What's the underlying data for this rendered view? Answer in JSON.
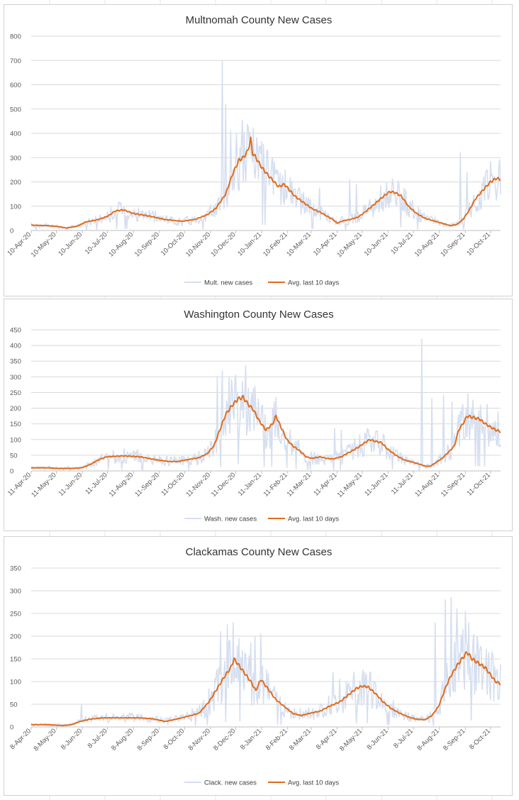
{
  "colors": {
    "raw": "#d6dff0",
    "avg": "#e06c1b",
    "grid": "#d9d9d9",
    "axis": "#bfbfbf",
    "text": "#595959",
    "sheet_grid": "#e4e4e4"
  },
  "chart_data": [
    {
      "id": "mult",
      "type": "line",
      "title": "Multnomah County New Cases",
      "ylim": [
        0,
        800
      ],
      "yticks": [
        0,
        100,
        200,
        300,
        400,
        500,
        600,
        700,
        800
      ],
      "xlim": [
        0,
        560
      ],
      "xtick_days": [
        0,
        30,
        61,
        91,
        122,
        153,
        183,
        214,
        244,
        275,
        306,
        334,
        365,
        395,
        426,
        456,
        487,
        518,
        548
      ],
      "categories": [
        "10-Apr-20",
        "10-May-20",
        "10-Jun-20",
        "10-Jul-20",
        "10-Aug-20",
        "10-Sep-20",
        "10-Oct-20",
        "10-Nov-20",
        "10-Dec-20",
        "10-Jan-21",
        "10-Feb-21",
        "10-Mar-21",
        "10-Apr-21",
        "10-May-21",
        "10-Jun-21",
        "10-Jul-21",
        "10-Aug-21",
        "10-Sep-21",
        "10-Oct-21"
      ],
      "series": [
        {
          "name": "Mult. new cases",
          "noise": 0.45,
          "spikes": [
            [
              228,
              700
            ],
            [
              232,
              520
            ],
            [
              238,
              410
            ],
            [
              245,
              400
            ],
            [
              252,
              455
            ],
            [
              262,
              310
            ],
            [
              268,
              260
            ],
            [
              344,
              175
            ],
            [
              380,
              210
            ],
            [
              388,
              190
            ],
            [
              512,
              320
            ],
            [
              520,
              240
            ],
            [
              540,
              220
            ],
            [
              552,
              215
            ]
          ]
        },
        {
          "name": "Avg. last 10 days",
          "points": [
            [
              0,
              22
            ],
            [
              20,
              20
            ],
            [
              35,
              15
            ],
            [
              42,
              10
            ],
            [
              55,
              18
            ],
            [
              65,
              35
            ],
            [
              80,
              45
            ],
            [
              92,
              60
            ],
            [
              100,
              80
            ],
            [
              110,
              85
            ],
            [
              122,
              70
            ],
            [
              140,
              60
            ],
            [
              160,
              45
            ],
            [
              180,
              38
            ],
            [
              195,
              45
            ],
            [
              210,
              65
            ],
            [
              220,
              90
            ],
            [
              232,
              150
            ],
            [
              240,
              230
            ],
            [
              248,
              290
            ],
            [
              253,
              300
            ],
            [
              258,
              325
            ],
            [
              262,
              375
            ],
            [
              264,
              320
            ],
            [
              268,
              300
            ],
            [
              275,
              260
            ],
            [
              282,
              230
            ],
            [
              290,
              200
            ],
            [
              295,
              180
            ],
            [
              302,
              190
            ],
            [
              306,
              175
            ],
            [
              315,
              140
            ],
            [
              325,
              115
            ],
            [
              335,
              90
            ],
            [
              345,
              75
            ],
            [
              355,
              55
            ],
            [
              360,
              45
            ],
            [
              365,
              30
            ],
            [
              372,
              40
            ],
            [
              380,
              45
            ],
            [
              390,
              55
            ],
            [
              398,
              75
            ],
            [
              410,
              110
            ],
            [
              420,
              140
            ],
            [
              428,
              160
            ],
            [
              435,
              155
            ],
            [
              442,
              140
            ],
            [
              450,
              100
            ],
            [
              460,
              70
            ],
            [
              470,
              50
            ],
            [
              480,
              40
            ],
            [
              490,
              30
            ],
            [
              500,
              20
            ],
            [
              508,
              25
            ],
            [
              515,
              45
            ],
            [
              522,
              80
            ],
            [
              530,
              130
            ],
            [
              540,
              170
            ],
            [
              548,
              200
            ],
            [
              555,
              215
            ],
            [
              560,
              210
            ]
          ]
        }
      ]
    },
    {
      "id": "wash",
      "type": "line",
      "title": "Washington County New Cases",
      "ylim": [
        0,
        450
      ],
      "yticks": [
        0,
        50,
        100,
        150,
        200,
        250,
        300,
        350,
        400,
        450
      ],
      "xlim": [
        0,
        560
      ],
      "xtick_days": [
        0,
        30,
        61,
        91,
        122,
        153,
        183,
        214,
        244,
        275,
        306,
        334,
        365,
        395,
        426,
        456,
        487,
        518,
        548
      ],
      "categories": [
        "11-Apr-20",
        "11-May-20",
        "11-Jun-20",
        "11-Jul-20",
        "11-Aug-20",
        "11-Sep-20",
        "11-Oct-20",
        "11-Nov-20",
        "11-Dec-20",
        "11-Jan-21",
        "11-Feb-21",
        "11-Mar-21",
        "11-Apr-21",
        "11-May-21",
        "11-Jun-21",
        "11-Jul-21",
        "11-Aug-21",
        "11-Sep-21",
        "11-Oct-21"
      ],
      "series": [
        {
          "name": "Wash. new cases",
          "noise": 0.5,
          "spikes": [
            [
              222,
              300
            ],
            [
              228,
              320
            ],
            [
              236,
              300
            ],
            [
              244,
              305
            ],
            [
              252,
              285
            ],
            [
              262,
              215
            ],
            [
              268,
              200
            ],
            [
              362,
              135
            ],
            [
              370,
              130
            ],
            [
              466,
              420
            ],
            [
              478,
              230
            ],
            [
              492,
              240
            ],
            [
              502,
              220
            ],
            [
              528,
              150
            ]
          ]
        },
        {
          "name": "Avg. last 10 days",
          "points": [
            [
              0,
              10
            ],
            [
              20,
              10
            ],
            [
              30,
              8
            ],
            [
              50,
              8
            ],
            [
              60,
              10
            ],
            [
              70,
              20
            ],
            [
              80,
              35
            ],
            [
              90,
              45
            ],
            [
              110,
              48
            ],
            [
              130,
              45
            ],
            [
              150,
              35
            ],
            [
              165,
              30
            ],
            [
              175,
              30
            ],
            [
              185,
              35
            ],
            [
              200,
              42
            ],
            [
              210,
              55
            ],
            [
              218,
              80
            ],
            [
              225,
              130
            ],
            [
              232,
              180
            ],
            [
              240,
              210
            ],
            [
              247,
              230
            ],
            [
              253,
              235
            ],
            [
              258,
              215
            ],
            [
              265,
              195
            ],
            [
              272,
              160
            ],
            [
              280,
              130
            ],
            [
              288,
              150
            ],
            [
              292,
              175
            ],
            [
              298,
              140
            ],
            [
              305,
              100
            ],
            [
              312,
              80
            ],
            [
              320,
              65
            ],
            [
              328,
              45
            ],
            [
              335,
              40
            ],
            [
              345,
              45
            ],
            [
              352,
              40
            ],
            [
              360,
              38
            ],
            [
              370,
              45
            ],
            [
              380,
              60
            ],
            [
              390,
              75
            ],
            [
              398,
              90
            ],
            [
              404,
              100
            ],
            [
              410,
              95
            ],
            [
              418,
              90
            ],
            [
              425,
              70
            ],
            [
              435,
              50
            ],
            [
              445,
              35
            ],
            [
              455,
              28
            ],
            [
              465,
              20
            ],
            [
              470,
              15
            ],
            [
              476,
              15
            ],
            [
              482,
              25
            ],
            [
              490,
              40
            ],
            [
              498,
              60
            ],
            [
              505,
              80
            ],
            [
              510,
              130
            ],
            [
              515,
              150
            ],
            [
              520,
              175
            ],
            [
              528,
              170
            ],
            [
              535,
              165
            ],
            [
              542,
              150
            ],
            [
              548,
              140
            ],
            [
              555,
              130
            ],
            [
              560,
              125
            ]
          ]
        }
      ]
    },
    {
      "id": "clack",
      "type": "line",
      "title": "Clackamas County New Cases",
      "ylim": [
        0,
        350
      ],
      "yticks": [
        0,
        50,
        100,
        150,
        200,
        250,
        300,
        350
      ],
      "xlim": [
        0,
        560
      ],
      "xtick_days": [
        0,
        30,
        61,
        91,
        122,
        153,
        183,
        214,
        244,
        275,
        306,
        334,
        365,
        395,
        426,
        456,
        487,
        518,
        548
      ],
      "categories": [
        "8-Apr-20",
        "8-May-20",
        "8-Jun-20",
        "8-Jul-20",
        "8-Aug-20",
        "8-Sep-20",
        "8-Oct-20",
        "8-Nov-20",
        "8-Dec-20",
        "8-Jan-21",
        "8-Feb-21",
        "8-Mar-21",
        "8-Apr-21",
        "8-May-21",
        "8-Jun-21",
        "8-Jul-21",
        "8-Aug-21",
        "8-Sep-21",
        "8-Oct-21"
      ],
      "series": [
        {
          "name": "Clack. new cases",
          "noise": 0.5,
          "spikes": [
            [
              60,
              50
            ],
            [
              226,
              210
            ],
            [
              234,
              225
            ],
            [
              241,
              230
            ],
            [
              248,
              195
            ],
            [
              262,
              185
            ],
            [
              267,
              200
            ],
            [
              274,
              205
            ],
            [
              360,
              120
            ],
            [
              368,
              105
            ],
            [
              398,
              120
            ],
            [
              404,
              120
            ],
            [
              482,
              230
            ],
            [
              494,
              280
            ],
            [
              501,
              285
            ],
            [
              508,
              260
            ],
            [
              518,
              255
            ],
            [
              532,
              200
            ]
          ]
        },
        {
          "name": "Avg. last 10 days",
          "points": [
            [
              0,
              5
            ],
            [
              20,
              5
            ],
            [
              38,
              3
            ],
            [
              48,
              5
            ],
            [
              58,
              12
            ],
            [
              70,
              17
            ],
            [
              85,
              20
            ],
            [
              110,
              20
            ],
            [
              130,
              20
            ],
            [
              145,
              18
            ],
            [
              160,
              12
            ],
            [
              175,
              18
            ],
            [
              190,
              25
            ],
            [
              200,
              30
            ],
            [
              212,
              55
            ],
            [
              222,
              85
            ],
            [
              232,
              115
            ],
            [
              238,
              130
            ],
            [
              242,
              150
            ],
            [
              248,
              135
            ],
            [
              256,
              115
            ],
            [
              262,
              100
            ],
            [
              268,
              80
            ],
            [
              274,
              105
            ],
            [
              282,
              85
            ],
            [
              292,
              60
            ],
            [
              302,
              45
            ],
            [
              312,
              30
            ],
            [
              322,
              25
            ],
            [
              332,
              30
            ],
            [
              345,
              35
            ],
            [
              355,
              45
            ],
            [
              368,
              55
            ],
            [
              378,
              70
            ],
            [
              388,
              85
            ],
            [
              395,
              90
            ],
            [
              402,
              88
            ],
            [
              410,
              75
            ],
            [
              420,
              55
            ],
            [
              430,
              40
            ],
            [
              440,
              30
            ],
            [
              450,
              22
            ],
            [
              460,
              17
            ],
            [
              470,
              16
            ],
            [
              478,
              25
            ],
            [
              486,
              45
            ],
            [
              494,
              85
            ],
            [
              500,
              110
            ],
            [
              508,
              135
            ],
            [
              514,
              150
            ],
            [
              520,
              165
            ],
            [
              526,
              150
            ],
            [
              534,
              140
            ],
            [
              542,
              130
            ],
            [
              548,
              115
            ],
            [
              554,
              100
            ],
            [
              560,
              95
            ]
          ]
        }
      ]
    }
  ]
}
